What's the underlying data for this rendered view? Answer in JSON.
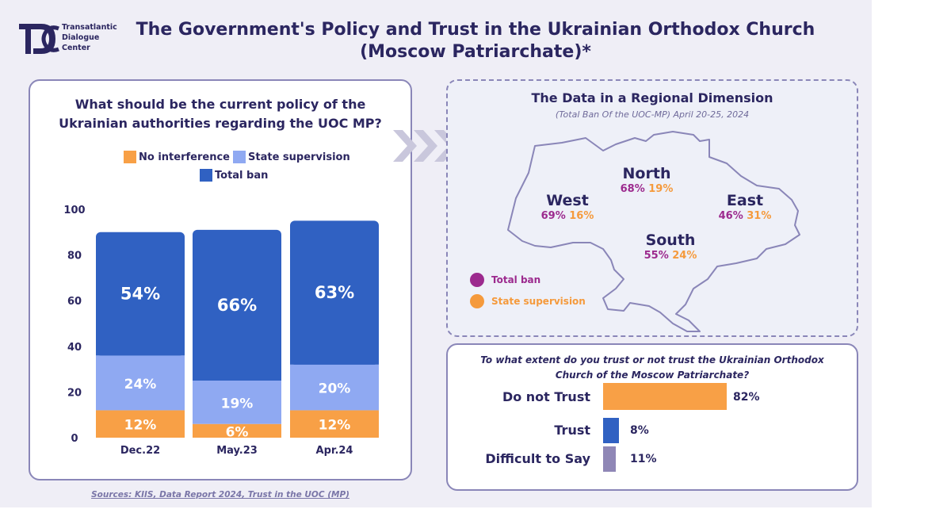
{
  "logo": {
    "line1": "Transatlantic",
    "line2": "Dialogue",
    "line3": "Center"
  },
  "title": {
    "line1": "The Government's Policy and Trust in the Ukrainian Orthodox Church",
    "line2": "(Moscow Patriarchate)*"
  },
  "policy": {
    "question_line1": "What should be the current policy of the",
    "question_line2": "Ukrainian authorities regarding the UOC MP?"
  },
  "chart_data": [
    {
      "type": "bar",
      "stacked": true,
      "title": "What should be the current policy of the Ukrainian authorities regarding the UOC MP?",
      "categories": [
        "Dec.22",
        "May.23",
        "Apr.24"
      ],
      "series": [
        {
          "name": "No interference",
          "values": [
            12,
            6,
            12
          ],
          "labels": [
            "12%",
            "6%",
            "12%"
          ],
          "color": "#f8a046"
        },
        {
          "name": "State supervision",
          "values": [
            24,
            19,
            20
          ],
          "labels": [
            "24%",
            "19%",
            "20%"
          ],
          "color": "#8fa9f2"
        },
        {
          "name": "Total ban",
          "values": [
            54,
            66,
            63
          ],
          "labels": [
            "54%",
            "66%",
            "63%"
          ],
          "color": "#3061c2"
        }
      ],
      "yticks": [
        "0",
        "20",
        "40",
        "60",
        "80",
        "100"
      ],
      "ylim": [
        0,
        100
      ],
      "grid": false,
      "legend": "top"
    },
    {
      "type": "bar",
      "orientation": "horizontal",
      "title": "To what extent do you trust or not trust the Ukrainian Orthodox Church of the Moscow Patriarchate?",
      "categories": [
        "Do not Trust",
        "Trust",
        "Difficult to Say"
      ],
      "values": [
        82,
        8,
        11
      ],
      "labels": [
        "82%",
        "8%",
        "11%"
      ],
      "colors": [
        "#f8a046",
        "#3061c2",
        "#8f87b6"
      ]
    }
  ],
  "map": {
    "title": "The Data in a Regional Dimension",
    "subtitle": "(Total Ban Of the UOC-MP) April 20-25, 2024",
    "regions": [
      {
        "name": "North",
        "ban": "68%",
        "supervision": "19%"
      },
      {
        "name": "West",
        "ban": "69%",
        "supervision": "16%"
      },
      {
        "name": "East",
        "ban": "46%",
        "supervision": "31%"
      },
      {
        "name": "South",
        "ban": "55%",
        "supervision": "24%"
      }
    ],
    "legend": {
      "ban": "Total ban",
      "supervision": "State supervision"
    },
    "colors": {
      "ban": "#9c2a8e",
      "supervision": "#f59a3c"
    }
  },
  "trust": {
    "question_line1": "To what extent do you trust or not trust the Ukrainian Orthodox",
    "question_line2": "Church of the Moscow Patriarchate?"
  },
  "sources": "Sources: KIIS, Data Report 2024, Trust in the UOC (MP)"
}
